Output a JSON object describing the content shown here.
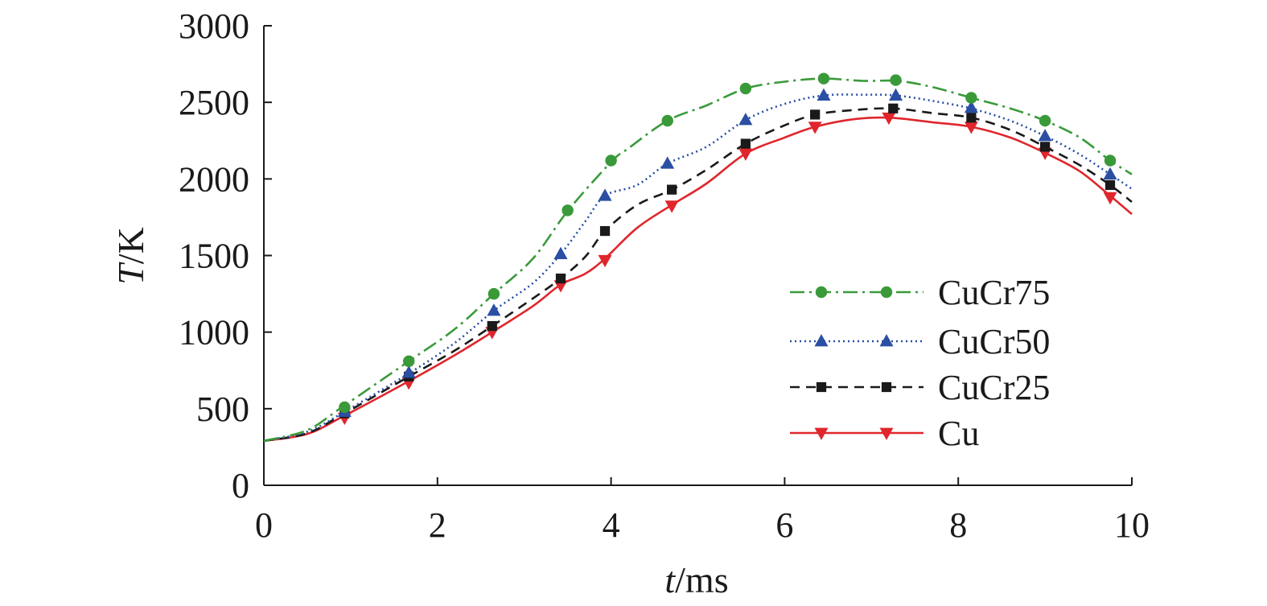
{
  "chart_data": {
    "type": "line",
    "xlabel": {
      "var": "t",
      "unit": "/ms"
    },
    "ylabel": {
      "var": "T",
      "unit": "/K"
    },
    "xlim": [
      0,
      10
    ],
    "ylim": [
      0,
      3000
    ],
    "xticks": [
      "0",
      "2",
      "4",
      "6",
      "8",
      "10"
    ],
    "yticks": [
      "0",
      "500",
      "1000",
      "1500",
      "2000",
      "2500",
      "3000"
    ],
    "grid": false,
    "legend_position": "right",
    "series": [
      {
        "name": "CuCr75",
        "color": "#3a9a3a",
        "dash": "18,6,3,6",
        "marker": "circle",
        "line": [
          [
            0,
            290
          ],
          [
            0.5,
            360
          ],
          [
            0.9,
            510
          ],
          [
            1.67,
            810
          ],
          [
            2.2,
            1020
          ],
          [
            2.65,
            1250
          ],
          [
            3.1,
            1480
          ],
          [
            3.5,
            1790
          ],
          [
            4.0,
            2110
          ],
          [
            4.2,
            2200
          ],
          [
            4.65,
            2380
          ],
          [
            5.1,
            2480
          ],
          [
            5.55,
            2590
          ],
          [
            6.0,
            2635
          ],
          [
            6.45,
            2655
          ],
          [
            6.9,
            2640
          ],
          [
            7.3,
            2640
          ],
          [
            7.7,
            2600
          ],
          [
            8.15,
            2530
          ],
          [
            8.6,
            2460
          ],
          [
            9.0,
            2380
          ],
          [
            9.4,
            2270
          ],
          [
            9.75,
            2120
          ],
          [
            10.0,
            2030
          ]
        ],
        "markers": [
          [
            0.93,
            510
          ],
          [
            1.67,
            810
          ],
          [
            2.65,
            1250
          ],
          [
            3.5,
            1795
          ],
          [
            4.0,
            2120
          ],
          [
            4.65,
            2380
          ],
          [
            5.55,
            2590
          ],
          [
            6.45,
            2655
          ],
          [
            7.28,
            2645
          ],
          [
            8.15,
            2530
          ],
          [
            9.0,
            2380
          ],
          [
            9.75,
            2120
          ]
        ]
      },
      {
        "name": "CuCr50",
        "color": "#2a4fa3",
        "dash": "2,4",
        "marker": "triangle-up",
        "line": [
          [
            0,
            290
          ],
          [
            0.5,
            350
          ],
          [
            0.93,
            480
          ],
          [
            1.67,
            730
          ],
          [
            2.2,
            930
          ],
          [
            2.65,
            1140
          ],
          [
            3.1,
            1320
          ],
          [
            3.42,
            1510
          ],
          [
            3.7,
            1720
          ],
          [
            3.93,
            1890
          ],
          [
            4.3,
            1960
          ],
          [
            4.65,
            2100
          ],
          [
            5.1,
            2210
          ],
          [
            5.55,
            2385
          ],
          [
            6.0,
            2490
          ],
          [
            6.45,
            2545
          ],
          [
            6.9,
            2550
          ],
          [
            7.28,
            2545
          ],
          [
            7.7,
            2510
          ],
          [
            8.15,
            2460
          ],
          [
            8.6,
            2380
          ],
          [
            9.0,
            2280
          ],
          [
            9.4,
            2160
          ],
          [
            9.75,
            2030
          ],
          [
            10.0,
            1935
          ]
        ],
        "markers": [
          [
            0.93,
            480
          ],
          [
            1.67,
            735
          ],
          [
            2.65,
            1140
          ],
          [
            3.42,
            1510
          ],
          [
            3.93,
            1890
          ],
          [
            4.65,
            2100
          ],
          [
            5.55,
            2385
          ],
          [
            6.45,
            2545
          ],
          [
            7.28,
            2545
          ],
          [
            8.15,
            2465
          ],
          [
            9.0,
            2280
          ],
          [
            9.75,
            2030
          ]
        ]
      },
      {
        "name": "CuCr25",
        "color": "#1a1a1a",
        "dash": "12,8",
        "marker": "square",
        "line": [
          [
            0,
            290
          ],
          [
            0.5,
            340
          ],
          [
            0.93,
            470
          ],
          [
            1.67,
            710
          ],
          [
            2.2,
            880
          ],
          [
            2.63,
            1040
          ],
          [
            3.1,
            1220
          ],
          [
            3.42,
            1350
          ],
          [
            3.7,
            1490
          ],
          [
            3.93,
            1660
          ],
          [
            4.3,
            1830
          ],
          [
            4.7,
            1930
          ],
          [
            5.1,
            2060
          ],
          [
            5.55,
            2230
          ],
          [
            6.0,
            2350
          ],
          [
            6.35,
            2420
          ],
          [
            6.8,
            2450
          ],
          [
            7.25,
            2460
          ],
          [
            7.7,
            2430
          ],
          [
            8.15,
            2400
          ],
          [
            8.6,
            2320
          ],
          [
            9.0,
            2210
          ],
          [
            9.4,
            2090
          ],
          [
            9.75,
            1960
          ],
          [
            10.0,
            1850
          ]
        ],
        "markers": [
          [
            0.93,
            470
          ],
          [
            1.67,
            710
          ],
          [
            2.63,
            1040
          ],
          [
            3.42,
            1350
          ],
          [
            3.93,
            1660
          ],
          [
            4.7,
            1930
          ],
          [
            5.55,
            2230
          ],
          [
            6.35,
            2420
          ],
          [
            7.25,
            2460
          ],
          [
            8.15,
            2400
          ],
          [
            9.0,
            2210
          ],
          [
            9.75,
            1960
          ]
        ]
      },
      {
        "name": "Cu",
        "color": "#e0262d",
        "dash": "none",
        "marker": "triangle-down",
        "line": [
          [
            0,
            290
          ],
          [
            0.5,
            335
          ],
          [
            0.93,
            455
          ],
          [
            1.67,
            680
          ],
          [
            2.2,
            850
          ],
          [
            2.63,
            1000
          ],
          [
            3.1,
            1170
          ],
          [
            3.42,
            1310
          ],
          [
            3.7,
            1380
          ],
          [
            3.93,
            1480
          ],
          [
            4.3,
            1680
          ],
          [
            4.7,
            1830
          ],
          [
            5.1,
            1970
          ],
          [
            5.55,
            2165
          ],
          [
            6.0,
            2270
          ],
          [
            6.35,
            2340
          ],
          [
            6.8,
            2390
          ],
          [
            7.2,
            2400
          ],
          [
            7.7,
            2370
          ],
          [
            8.15,
            2340
          ],
          [
            8.6,
            2270
          ],
          [
            9.0,
            2170
          ],
          [
            9.4,
            2050
          ],
          [
            9.75,
            1890
          ],
          [
            10.0,
            1770
          ]
        ],
        "markers": [
          [
            0.93,
            440
          ],
          [
            1.67,
            670
          ],
          [
            2.63,
            1000
          ],
          [
            3.42,
            1305
          ],
          [
            3.93,
            1470
          ],
          [
            4.7,
            1825
          ],
          [
            5.55,
            2165
          ],
          [
            6.35,
            2340
          ],
          [
            7.2,
            2400
          ],
          [
            8.15,
            2340
          ],
          [
            9.0,
            2170
          ],
          [
            9.75,
            1880
          ]
        ]
      }
    ]
  }
}
